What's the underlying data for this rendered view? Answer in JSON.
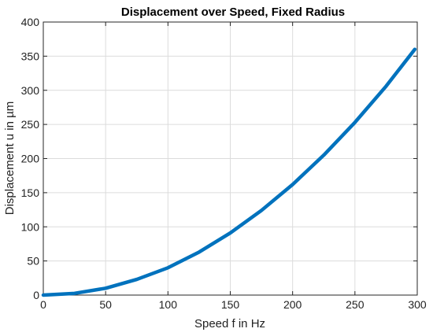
{
  "chart_data": {
    "type": "line",
    "title": "Displacement over Speed, Fixed Radius",
    "xlabel": "Speed f in Hz",
    "ylabel": "Displacement u in µm",
    "xlim": [
      0,
      300
    ],
    "ylim": [
      0,
      400
    ],
    "xticks": [
      0,
      50,
      100,
      150,
      200,
      250,
      300
    ],
    "yticks": [
      0,
      50,
      100,
      150,
      200,
      250,
      300,
      350,
      400
    ],
    "grid": true,
    "line_color": "#0072BD",
    "series": [
      {
        "x": [
          0,
          25,
          50,
          75,
          100,
          125,
          150,
          175,
          200,
          225,
          250,
          275,
          298
        ],
        "y": [
          0,
          2.5,
          10,
          23,
          40,
          63,
          91,
          124,
          162,
          205,
          253,
          306,
          360
        ]
      }
    ]
  }
}
